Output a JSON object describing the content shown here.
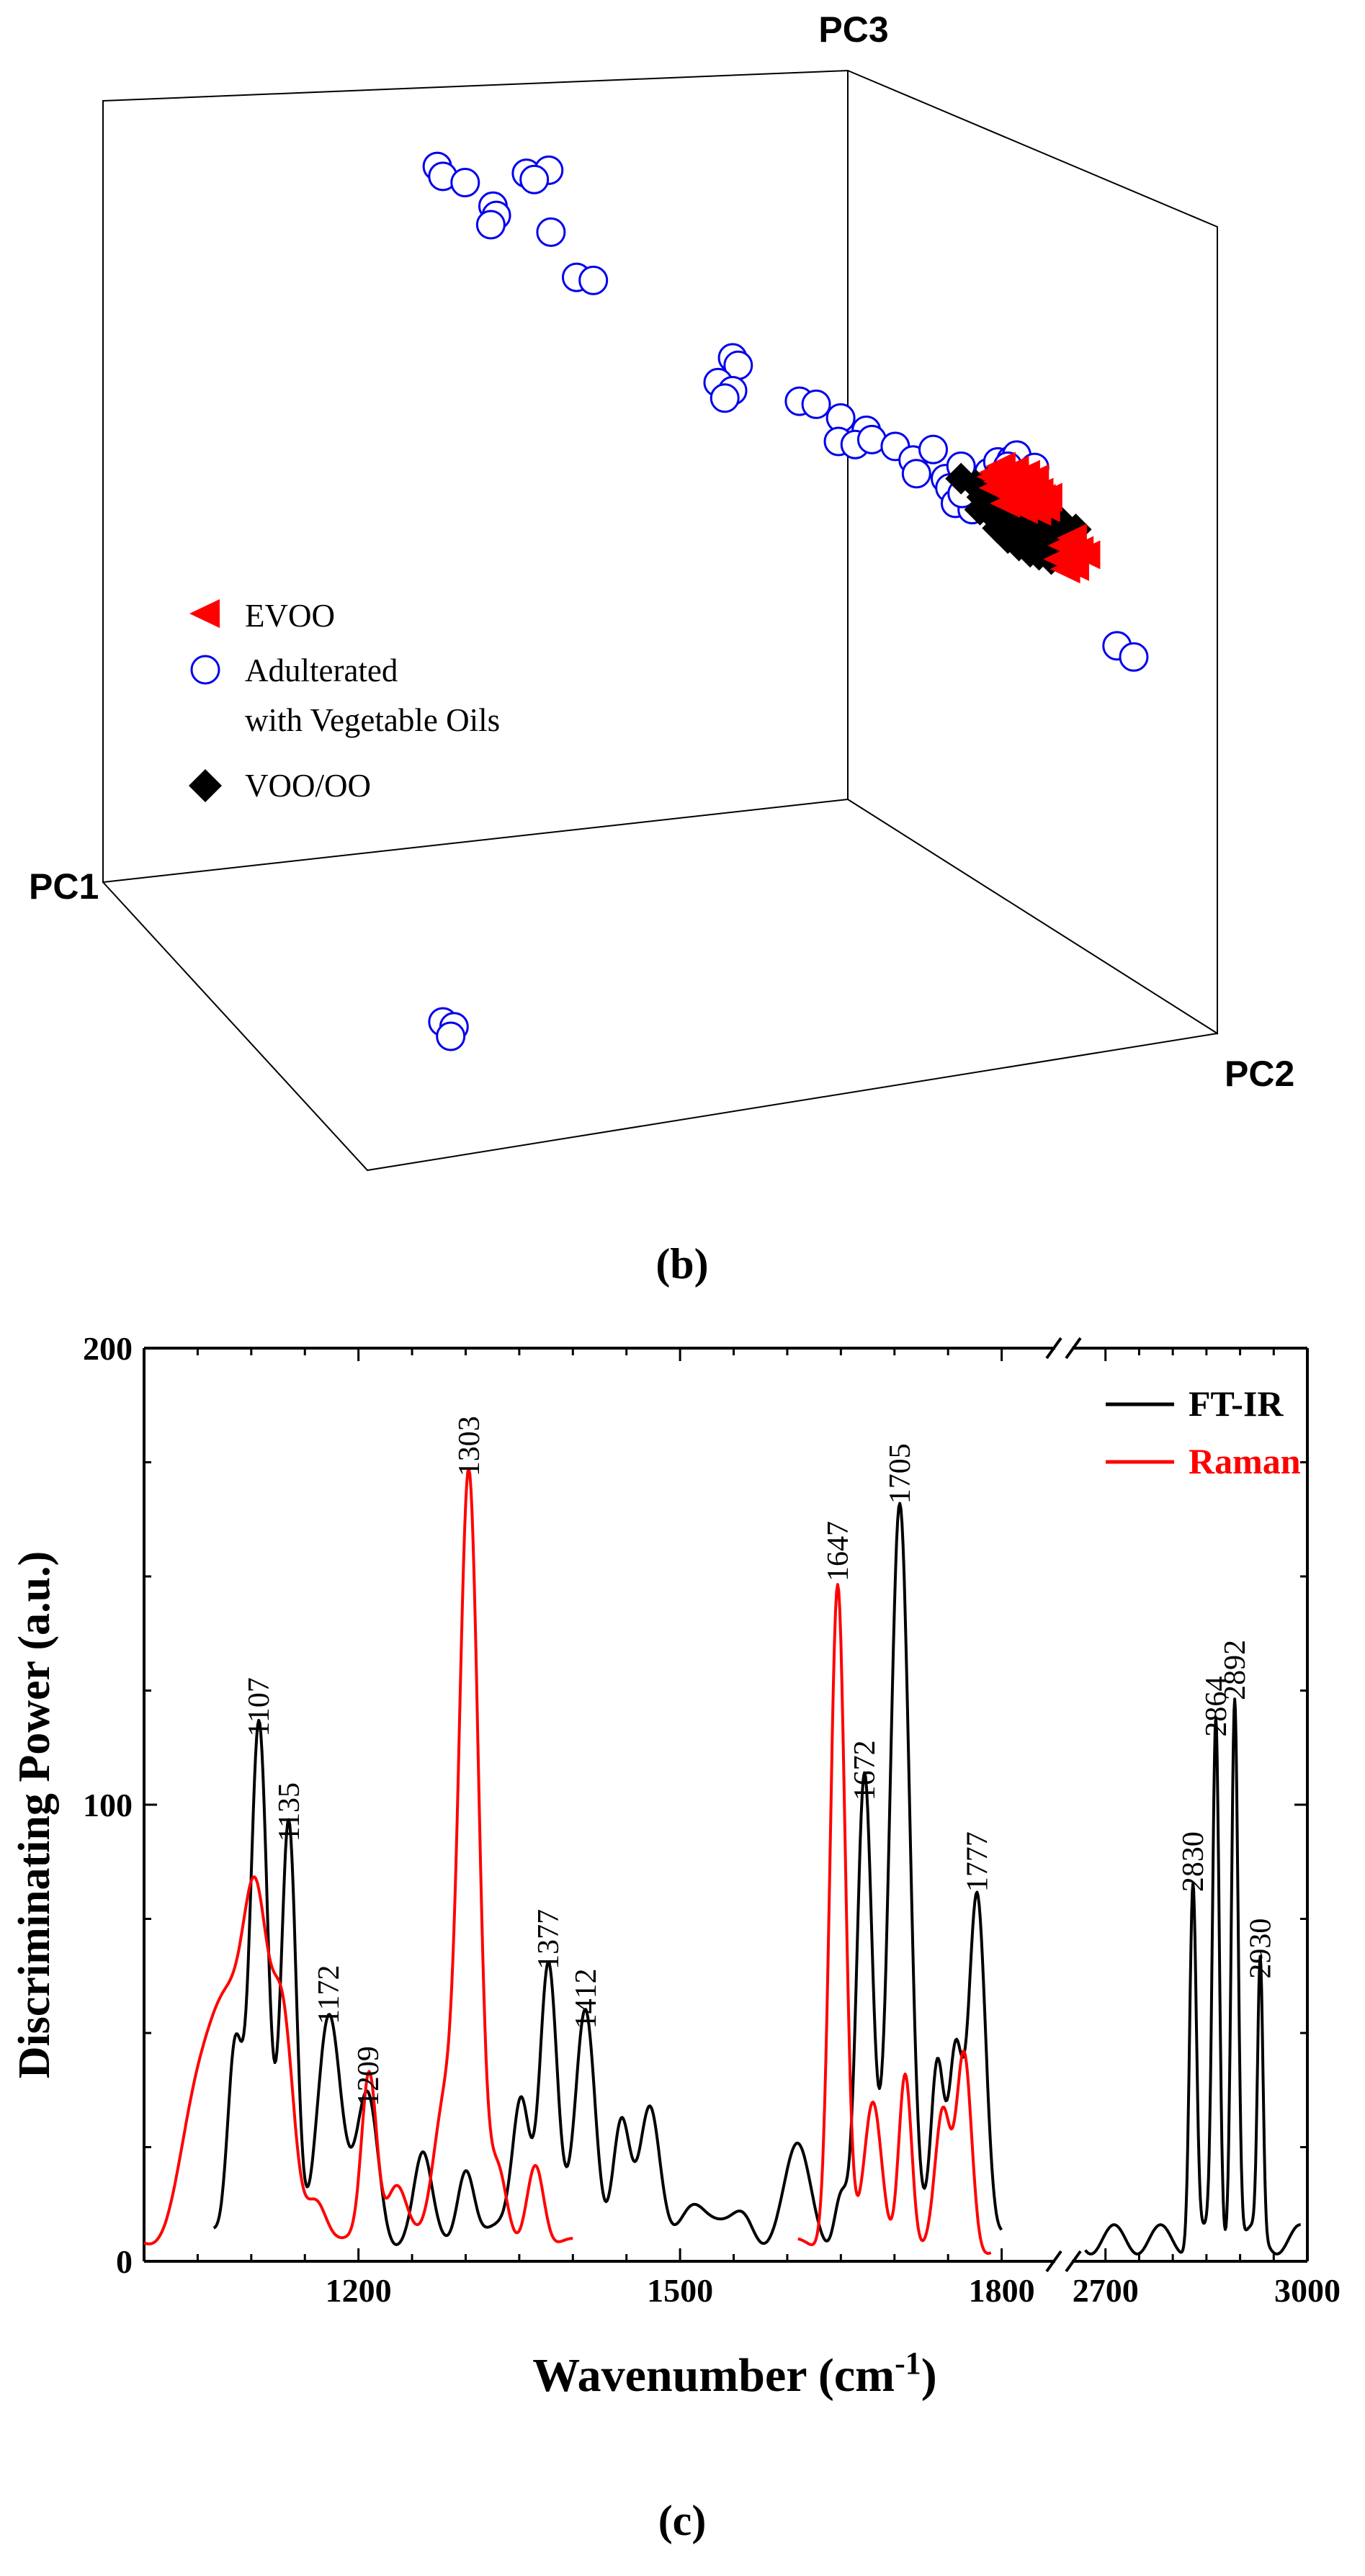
{
  "chart_data": [
    {
      "panel": "b",
      "type": "scatter",
      "caption": "(b)",
      "axes": {
        "x": "PC1",
        "y": "PC2",
        "z": "PC3"
      },
      "legend": {
        "placement": "left",
        "entries": [
          {
            "label": "EVOO",
            "marker": "red-triangle-left",
            "color": "#ff0000"
          },
          {
            "label_lines": [
              "Adulterated",
              "with Vegetable Oils"
            ],
            "marker": "blue-open-circle",
            "color": "#0000ee"
          },
          {
            "label": "VOO/OO",
            "marker": "black-diamond",
            "color": "#000000"
          }
        ]
      },
      "series": [
        {
          "name": "EVOO",
          "color": "#ff0000",
          "marker": "triangle-left",
          "points": [
            [
              0.8,
              0.6
            ],
            [
              0.806,
              0.59
            ],
            [
              0.812,
              0.605
            ],
            [
              0.818,
              0.596
            ],
            [
              0.804,
              0.615
            ],
            [
              0.822,
              0.612
            ],
            [
              0.828,
              0.603
            ],
            [
              0.813,
              0.623
            ],
            [
              0.824,
              0.63
            ],
            [
              0.834,
              0.62
            ],
            [
              0.84,
              0.632
            ],
            [
              0.817,
              0.64
            ],
            [
              0.831,
              0.645
            ],
            [
              0.845,
              0.65
            ],
            [
              0.81,
              0.65
            ],
            [
              0.798,
              0.607
            ],
            [
              0.836,
              0.61
            ],
            [
              0.842,
              0.642
            ],
            [
              0.826,
              0.66
            ],
            [
              0.808,
              0.628
            ],
            [
              0.82,
              0.65
            ],
            [
              0.832,
              0.655
            ],
            [
              0.846,
              0.657
            ],
            [
              0.8,
              0.625
            ],
            [
              0.815,
              0.613
            ],
            [
              0.838,
              0.663
            ],
            [
              0.848,
              0.64
            ],
            [
              0.862,
              0.718
            ],
            [
              0.87,
              0.706
            ],
            [
              0.876,
              0.726
            ],
            [
              0.858,
              0.74
            ],
            [
              0.868,
              0.738
            ],
            [
              0.882,
              0.733
            ],
            [
              0.864,
              0.756
            ],
            [
              0.872,
              0.752
            ]
          ]
        },
        {
          "name": "Adulterated with Vegetable Oils",
          "color": "#0000ee",
          "marker": "open-circle",
          "points": [
            [
              0.3,
              0.106
            ],
            [
              0.305,
              0.122
            ],
            [
              0.325,
              0.132
            ],
            [
              0.38,
              0.117
            ],
            [
              0.4,
              0.112
            ],
            [
              0.387,
              0.127
            ],
            [
              0.35,
              0.17
            ],
            [
              0.353,
              0.185
            ],
            [
              0.348,
              0.2
            ],
            [
              0.402,
              0.212
            ],
            [
              0.425,
              0.285
            ],
            [
              0.44,
              0.29
            ],
            [
              0.565,
              0.415
            ],
            [
              0.57,
              0.427
            ],
            [
              0.552,
              0.455
            ],
            [
              0.565,
              0.468
            ],
            [
              0.558,
              0.48
            ],
            [
              0.625,
              0.485
            ],
            [
              0.64,
              0.49
            ],
            [
              0.662,
              0.512
            ],
            [
              0.685,
              0.532
            ],
            [
              0.66,
              0.55
            ],
            [
              0.675,
              0.555
            ],
            [
              0.69,
              0.547
            ],
            [
              0.711,
              0.558
            ],
            [
              0.727,
              0.58
            ],
            [
              0.745,
              0.563
            ],
            [
              0.73,
              0.602
            ],
            [
              0.756,
              0.61
            ],
            [
              0.76,
              0.625
            ],
            [
              0.777,
              0.612
            ],
            [
              0.79,
              0.62
            ],
            [
              0.795,
              0.6
            ],
            [
              0.803,
              0.583
            ],
            [
              0.815,
              0.58
            ],
            [
              0.83,
              0.6
            ],
            [
              0.82,
              0.572
            ],
            [
              0.812,
              0.59
            ],
            [
              0.77,
              0.59
            ],
            [
              0.765,
              0.65
            ],
            [
              0.78,
              0.66
            ],
            [
              0.771,
              0.634
            ],
            [
              0.836,
              0.592
            ],
            [
              0.91,
              0.88
            ],
            [
              0.925,
              0.898
            ]
          ]
        },
        {
          "name": "VOO/OO",
          "color": "#000000",
          "marker": "diamond",
          "points": [
            [
              0.77,
              0.61
            ],
            [
              0.783,
              0.62
            ],
            [
              0.797,
              0.628
            ],
            [
              0.808,
              0.64
            ],
            [
              0.818,
              0.652
            ],
            [
              0.83,
              0.665
            ],
            [
              0.843,
              0.676
            ],
            [
              0.855,
              0.69
            ],
            [
              0.789,
              0.64
            ],
            [
              0.803,
              0.652
            ],
            [
              0.815,
              0.665
            ],
            [
              0.826,
              0.678
            ],
            [
              0.838,
              0.692
            ],
            [
              0.85,
              0.705
            ],
            [
              0.812,
              0.706
            ],
            [
              0.822,
              0.718
            ],
            [
              0.832,
              0.728
            ],
            [
              0.787,
              0.66
            ],
            [
              0.8,
              0.672
            ],
            [
              0.812,
              0.686
            ],
            [
              0.796,
              0.612
            ],
            [
              0.821,
              0.632
            ],
            [
              0.846,
              0.658
            ],
            [
              0.86,
              0.68
            ],
            [
              0.873,
              0.692
            ],
            [
              0.836,
              0.712
            ],
            [
              0.848,
              0.722
            ],
            [
              0.803,
              0.69
            ],
            [
              0.817,
              0.7
            ],
            [
              0.828,
              0.702
            ],
            [
              0.84,
              0.733
            ],
            [
              0.851,
              0.74
            ],
            [
              0.862,
              0.727
            ]
          ]
        }
      ],
      "floor_points": {
        "name": "Adulterated with Vegetable Oils",
        "points": [
          [
            0.305,
            0.485
          ],
          [
            0.315,
            0.502
          ],
          [
            0.312,
            0.535
          ]
        ]
      }
    },
    {
      "panel": "c",
      "type": "line",
      "caption": "(c)",
      "xlabel": "Wavenumber (cm",
      "xlabel_sup": "-1",
      "xlabel_close": ")",
      "ylabel": "Discriminating Power (a.u.)",
      "ylim": [
        0,
        200
      ],
      "yticks": [
        "0",
        "100",
        "200"
      ],
      "xticks_left": [
        "1200",
        "1500",
        "1800"
      ],
      "xticks_right": [
        "2700",
        "3000"
      ],
      "xlim_left": [
        1000,
        1850
      ],
      "xlim_right": [
        2650,
        3000
      ],
      "break": "after 1850",
      "legend": {
        "placement": "top-right",
        "entries": [
          {
            "label": "FT-IR",
            "color": "#000000"
          },
          {
            "label": "Raman",
            "color": "#ff0000"
          }
        ]
      },
      "series": [
        {
          "name": "FT-IR",
          "color": "#000000",
          "baseline": 8,
          "ranges": [
            [
              1065,
              1800
            ],
            [
              2670,
              2990
            ]
          ],
          "peaks": [
            [
              1085,
              45,
              7
            ],
            [
              1107,
              113,
              8
            ],
            [
              1135,
              90,
              7
            ],
            [
              1172,
              50,
              11
            ],
            [
              1209,
              32,
              10
            ],
            [
              1260,
              16,
              8
            ],
            [
              1300,
              18,
              8
            ],
            [
              1352,
              32,
              8
            ],
            [
              1377,
              62,
              8
            ],
            [
              1412,
              49,
              9
            ],
            [
              1445,
              28,
              8
            ],
            [
              1472,
              26,
              9
            ],
            [
              1510,
              10,
              12
            ],
            [
              1560,
              7,
              10
            ],
            [
              1610,
              18,
              12
            ],
            [
              1650,
              12,
              6
            ],
            [
              1672,
              99,
              7
            ],
            [
              1705,
              164,
              9
            ],
            [
              1740,
              36,
              6
            ],
            [
              1757,
              38,
              6
            ],
            [
              1777,
              79,
              8
            ],
            [
              2830,
              79,
              5
            ],
            [
              2864,
              113,
              5
            ],
            [
              2892,
              121,
              5
            ],
            [
              2930,
              60,
              4
            ]
          ]
        },
        {
          "name": "Raman",
          "color": "#ff0000",
          "baseline": 5,
          "ranges": [
            [
              1000,
              1400
            ],
            [
              1610,
              1790
            ]
          ],
          "peaks": [
            [
              1050,
              30,
              18
            ],
            [
              1080,
              45,
              16
            ],
            [
              1105,
              65,
              12
            ],
            [
              1130,
              45,
              10
            ],
            [
              1160,
              12,
              10
            ],
            [
              1210,
              38,
              7
            ],
            [
              1235,
              15,
              10
            ],
            [
              1280,
              30,
              10
            ],
            [
              1303,
              170,
              9
            ],
            [
              1330,
              15,
              8
            ],
            [
              1365,
              20,
              8
            ],
            [
              1647,
              147,
              7
            ],
            [
              1680,
              30,
              8
            ],
            [
              1710,
              40,
              6
            ],
            [
              1745,
              28,
              7
            ],
            [
              1765,
              43,
              7
            ]
          ]
        }
      ],
      "labelled_peaks": [
        {
          "label": "1107",
          "x": 1107,
          "y": 113
        },
        {
          "label": "1135",
          "x": 1135,
          "y": 90
        },
        {
          "label": "1172",
          "x": 1172,
          "y": 50
        },
        {
          "label": "1209",
          "x": 1209,
          "y": 32
        },
        {
          "label": "1303",
          "x": 1303,
          "y": 170
        },
        {
          "label": "1377",
          "x": 1377,
          "y": 62
        },
        {
          "label": "1412",
          "x": 1412,
          "y": 49
        },
        {
          "label": "1647",
          "x": 1647,
          "y": 147
        },
        {
          "label": "1672",
          "x": 1672,
          "y": 99
        },
        {
          "label": "1705",
          "x": 1705,
          "y": 164
        },
        {
          "label": "1777",
          "x": 1777,
          "y": 79
        },
        {
          "label": "2830",
          "x": 2830,
          "y": 79
        },
        {
          "label": "2864",
          "x": 2864,
          "y": 113
        },
        {
          "label": "2892",
          "x": 2892,
          "y": 121
        },
        {
          "label": "2930",
          "x": 2930,
          "y": 60
        }
      ]
    }
  ]
}
